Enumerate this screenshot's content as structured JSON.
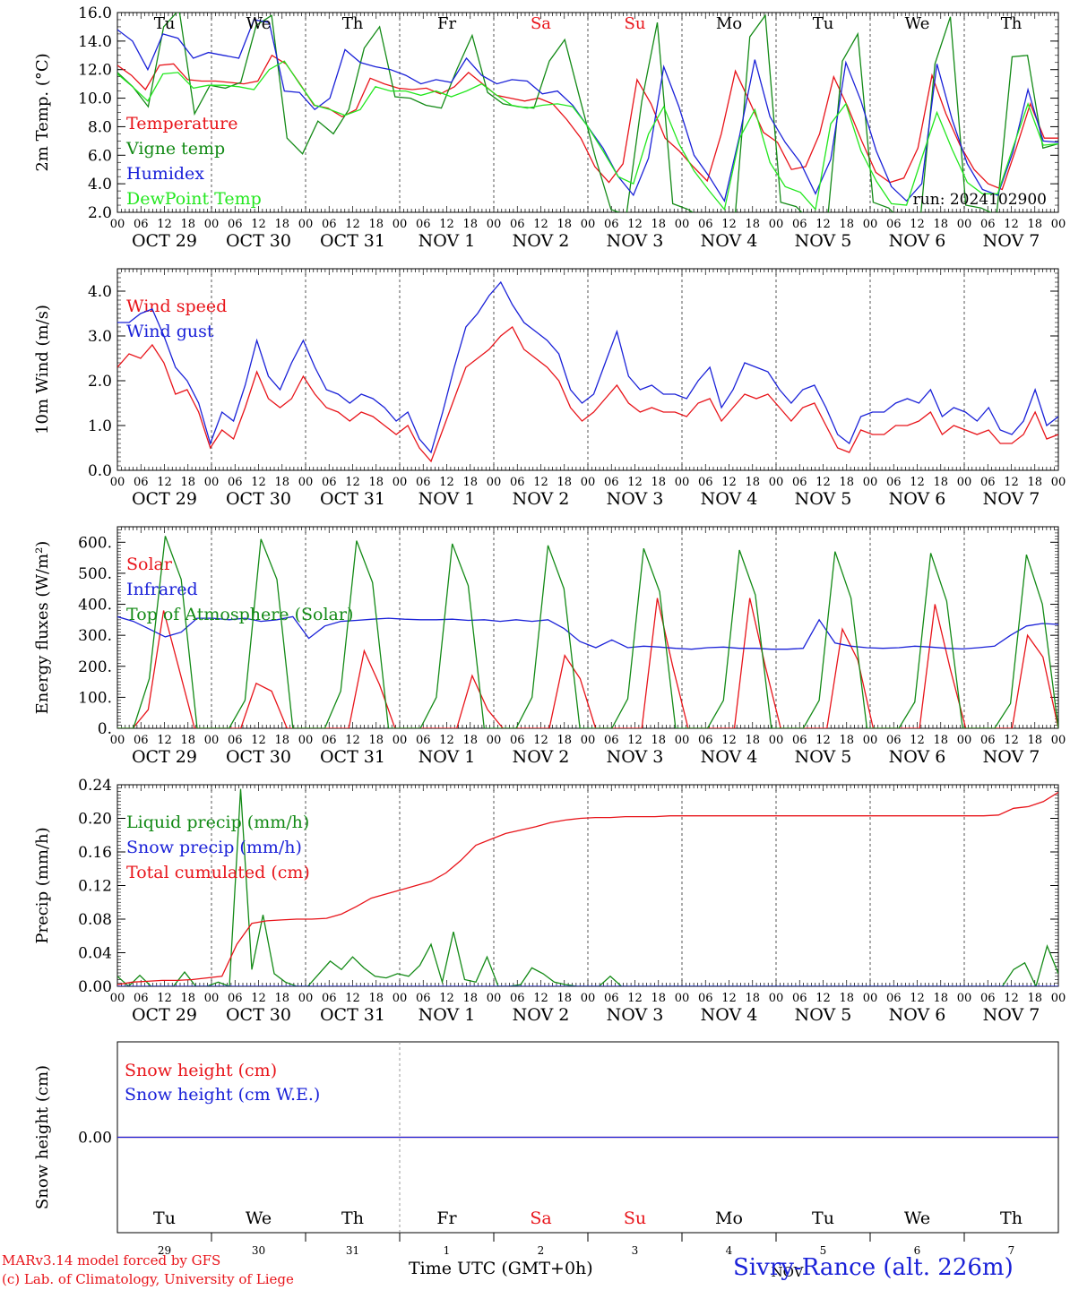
{
  "x_axis": {
    "day_labels": [
      "OCT 29",
      "OCT 30",
      "OCT 31",
      "NOV  1",
      "NOV  2",
      "NOV  3",
      "NOV  4",
      "NOV  5",
      "NOV  6",
      "NOV  7"
    ],
    "hour_labels": [
      "00",
      "06",
      "12",
      "18"
    ],
    "end_hour_label": "00",
    "weekdays": [
      "Tu",
      "We",
      "Th",
      "Fr",
      "Sa",
      "Su",
      "Mo",
      "Tu",
      "We",
      "Th"
    ],
    "weekend_color": "#e8141a",
    "weekday_color": "#000000",
    "bottom_day_numbers": [
      "29",
      "30",
      "31",
      "1",
      "2",
      "3",
      "4",
      "5",
      "6",
      "7"
    ],
    "bottom_month_label": "NOV",
    "title": "Time UTC (GMT+0h)"
  },
  "footer": {
    "model_line": "MARv3.14 model forced by GFS",
    "lab_line": "(c) Lab. of Climatology, University of Liege",
    "station": "Sivry-Rance (alt. 226m)"
  },
  "chart_data": [
    {
      "type": "line",
      "ylabel": "2m Temp. (°C)",
      "ylim": [
        2.0,
        16.0
      ],
      "yticks": [
        "2.0",
        "4.0",
        "6.0",
        "8.0",
        "10.0",
        "12.0",
        "14.0",
        "16.0"
      ],
      "annotation": "run: 2024102900",
      "x": "3-hourly steps from 2024-10-29 00 UTC to 2024-11-08 00 UTC",
      "series": [
        {
          "name": "Temperature",
          "color": "#e8141a",
          "values": [
            12.3,
            11.6,
            10.6,
            12.3,
            12.4,
            11.3,
            11.2,
            11.2,
            11.1,
            11.0,
            11.2,
            13.0,
            12.4,
            11.0,
            9.5,
            9.3,
            8.7,
            9.2,
            11.4,
            11.0,
            10.7,
            10.6,
            10.7,
            10.3,
            10.8,
            11.8,
            11.0,
            10.2,
            10.0,
            9.8,
            10.0,
            9.6,
            8.5,
            7.2,
            5.2,
            4.1,
            5.4,
            11.3,
            9.6,
            7.2,
            6.3,
            5.2,
            4.2,
            7.5,
            11.9,
            9.8,
            7.6,
            6.9,
            5.0,
            5.2,
            7.5,
            11.5,
            9.4,
            7.0,
            4.8,
            4.1,
            4.4,
            6.5,
            11.6,
            8.9,
            6.7,
            5.0,
            4.0,
            3.6,
            6.5,
            9.6,
            7.2,
            7.2
          ]
        },
        {
          "name": "Vigne temp",
          "color": "#138a16",
          "values": [
            11.8,
            10.8,
            9.4,
            15.0,
            16.2,
            8.9,
            10.9,
            10.7,
            11.1,
            15.1,
            15.8,
            7.2,
            6.1,
            8.4,
            7.5,
            9.2,
            13.5,
            15.0,
            10.1,
            10.0,
            9.5,
            9.3,
            12.0,
            14.4,
            10.4,
            9.6,
            9.4,
            9.3,
            12.6,
            14.1,
            9.9,
            5.8,
            2.2,
            1.8,
            9.8,
            15.3,
            2.6,
            2.2,
            1.5,
            1.2,
            1.1,
            14.3,
            15.8,
            2.7,
            2.4,
            1.3,
            1.0,
            12.6,
            14.5,
            2.7,
            2.3,
            1.2,
            0.9,
            12.4,
            15.7,
            2.5,
            2.3,
            1.8,
            12.9,
            13.0,
            6.5,
            6.8
          ]
        },
        {
          "name": "Humidex",
          "color": "#1a21d8",
          "values": [
            14.8,
            14.0,
            12.0,
            14.5,
            14.2,
            12.8,
            13.2,
            13.0,
            12.8,
            15.5,
            15.3,
            10.5,
            10.4,
            9.2,
            10.0,
            13.4,
            12.5,
            12.2,
            12.0,
            11.6,
            11.0,
            11.3,
            11.1,
            12.8,
            11.6,
            11.0,
            11.3,
            11.2,
            10.3,
            10.5,
            9.5,
            8.0,
            6.5,
            4.5,
            3.2,
            5.8,
            12.2,
            9.4,
            6.0,
            4.5,
            2.8,
            7.4,
            12.7,
            8.7,
            6.9,
            5.5,
            3.3,
            5.7,
            12.5,
            9.8,
            6.3,
            3.8,
            2.8,
            4.0,
            12.4,
            8.5,
            5.4,
            3.6,
            3.2,
            6.2,
            10.6,
            7.0,
            6.9
          ]
        },
        {
          "name": "DewPoint Temp",
          "color": "#23e71f",
          "values": [
            11.7,
            10.8,
            9.8,
            11.7,
            11.8,
            10.7,
            10.9,
            10.9,
            10.8,
            10.6,
            12.0,
            12.6,
            11.0,
            9.5,
            9.2,
            8.8,
            9.2,
            10.8,
            10.5,
            10.5,
            10.2,
            10.5,
            10.1,
            10.5,
            11.0,
            10.2,
            9.5,
            9.3,
            9.5,
            9.6,
            9.4,
            8.0,
            6.3,
            4.5,
            4.0,
            7.5,
            9.4,
            6.8,
            4.9,
            3.5,
            2.2,
            7.2,
            9.2,
            5.5,
            3.8,
            3.4,
            2.2,
            8.2,
            9.6,
            6.3,
            4.2,
            2.6,
            2.5,
            5.8,
            9.0,
            6.4,
            4.1,
            3.3,
            3.3,
            6.5,
            9.6,
            6.7,
            6.8
          ]
        }
      ]
    },
    {
      "type": "line",
      "ylabel": "10m Wind (m/s)",
      "ylim": [
        0.0,
        4.5
      ],
      "yticks": [
        "0.0",
        "1.0",
        "2.0",
        "3.0",
        "4.0"
      ],
      "series": [
        {
          "name": "Wind speed",
          "color": "#e8141a",
          "values": [
            2.3,
            2.6,
            2.5,
            2.8,
            2.4,
            1.7,
            1.8,
            1.3,
            0.5,
            0.9,
            0.7,
            1.4,
            2.2,
            1.6,
            1.4,
            1.6,
            2.1,
            1.7,
            1.4,
            1.3,
            1.1,
            1.3,
            1.2,
            1.0,
            0.8,
            1.0,
            0.5,
            0.2,
            0.9,
            1.6,
            2.3,
            2.5,
            2.7,
            3.0,
            3.2,
            2.7,
            2.5,
            2.3,
            2.0,
            1.4,
            1.1,
            1.3,
            1.6,
            1.9,
            1.5,
            1.3,
            1.4,
            1.3,
            1.3,
            1.2,
            1.5,
            1.6,
            1.1,
            1.4,
            1.7,
            1.6,
            1.7,
            1.4,
            1.1,
            1.4,
            1.5,
            1.0,
            0.5,
            0.4,
            0.9,
            0.8,
            0.8,
            1.0,
            1.0,
            1.1,
            1.3,
            0.8,
            1.0,
            0.9,
            0.8,
            0.9,
            0.6,
            0.6,
            0.8,
            1.3,
            0.7,
            0.8
          ]
        },
        {
          "name": "Wind gust",
          "color": "#1a21d8",
          "values": [
            3.3,
            3.3,
            3.5,
            3.6,
            3.0,
            2.3,
            2.0,
            1.5,
            0.6,
            1.3,
            1.1,
            1.9,
            2.9,
            2.1,
            1.8,
            2.4,
            2.9,
            2.3,
            1.8,
            1.7,
            1.5,
            1.7,
            1.6,
            1.4,
            1.1,
            1.3,
            0.7,
            0.4,
            1.3,
            2.3,
            3.2,
            3.5,
            3.9,
            4.2,
            3.7,
            3.3,
            3.1,
            2.9,
            2.6,
            1.8,
            1.5,
            1.7,
            2.4,
            3.1,
            2.1,
            1.8,
            1.9,
            1.7,
            1.7,
            1.6,
            2.0,
            2.3,
            1.4,
            1.8,
            2.4,
            2.3,
            2.2,
            1.8,
            1.5,
            1.8,
            1.9,
            1.4,
            0.8,
            0.6,
            1.2,
            1.3,
            1.3,
            1.5,
            1.6,
            1.5,
            1.8,
            1.2,
            1.4,
            1.3,
            1.1,
            1.4,
            0.9,
            0.8,
            1.1,
            1.8,
            1.0,
            1.2
          ]
        }
      ]
    },
    {
      "type": "line",
      "ylabel": "Energy fluxes (W/m²)",
      "ylim": [
        0,
        650
      ],
      "yticks": [
        "0.",
        "100.",
        "200.",
        "300.",
        "400.",
        "500.",
        "600."
      ],
      "series": [
        {
          "name": "Solar",
          "color": "#e8141a",
          "values": [
            0,
            0,
            60,
            380,
            190,
            0,
            0,
            0,
            0,
            145,
            120,
            0,
            0,
            0,
            0,
            0,
            250,
            140,
            0,
            0,
            0,
            0,
            0,
            170,
            60,
            0,
            0,
            0,
            0,
            235,
            160,
            0,
            0,
            0,
            0,
            420,
            200,
            0,
            0,
            0,
            0,
            420,
            200,
            0,
            0,
            0,
            0,
            320,
            220,
            0,
            0,
            0,
            0,
            400,
            190,
            0,
            0,
            0,
            0,
            300,
            230,
            0
          ]
        },
        {
          "name": "Infrared",
          "color": "#1a21d8",
          "values": [
            360,
            345,
            320,
            295,
            310,
            355,
            355,
            350,
            355,
            345,
            350,
            360,
            290,
            330,
            345,
            348,
            352,
            355,
            352,
            350,
            350,
            352,
            348,
            350,
            345,
            350,
            345,
            350,
            322,
            280,
            260,
            285,
            260,
            265,
            262,
            258,
            255,
            260,
            262,
            258,
            258,
            255,
            255,
            258,
            350,
            275,
            265,
            260,
            258,
            260,
            265,
            262,
            258,
            256,
            260,
            265,
            300,
            330,
            338,
            335
          ]
        },
        {
          "name": "Top of Atmosphere (Solar)",
          "color": "#138a16",
          "values": [
            0,
            0,
            160,
            620,
            480,
            0,
            0,
            0,
            90,
            610,
            480,
            0,
            0,
            0,
            120,
            605,
            470,
            0,
            0,
            0,
            100,
            595,
            460,
            0,
            0,
            0,
            100,
            590,
            450,
            0,
            0,
            0,
            95,
            580,
            440,
            0,
            0,
            0,
            90,
            575,
            430,
            0,
            0,
            0,
            90,
            570,
            420,
            0,
            0,
            0,
            85,
            565,
            410,
            0,
            0,
            0,
            80,
            560,
            400,
            0
          ]
        }
      ]
    },
    {
      "type": "line",
      "ylabel": "Precip (mm/h)",
      "ylim": [
        0.0,
        0.24
      ],
      "yticks": [
        "0.00",
        "0.04",
        "0.08",
        "0.12",
        "0.16",
        "0.20",
        "0.24"
      ],
      "series": [
        {
          "name": "Liquid precip (mm/h)",
          "color": "#138a16",
          "values": [
            0.012,
            0.0,
            0.013,
            0.0,
            0.0,
            0.0,
            0.017,
            0.0,
            0.0,
            0.005,
            0.0,
            0.235,
            0.02,
            0.085,
            0.015,
            0.005,
            0.0,
            0.0,
            0.015,
            0.03,
            0.02,
            0.035,
            0.022,
            0.012,
            0.01,
            0.015,
            0.012,
            0.025,
            0.05,
            0.005,
            0.065,
            0.008,
            0.005,
            0.035,
            0.0,
            0.0,
            0.002,
            0.022,
            0.015,
            0.005,
            0.002,
            0.0,
            0.0,
            0.0,
            0.012,
            0.0,
            0.0,
            0.0,
            0.0,
            0.0,
            0.0,
            0.0,
            0.0,
            0.0,
            0.0,
            0.0,
            0.0,
            0.0,
            0.0,
            0.0,
            0.0,
            0.0,
            0.0,
            0.0,
            0.0,
            0.0,
            0.0,
            0.0,
            0.0,
            0.0,
            0.0,
            0.0,
            0.0,
            0.0,
            0.0,
            0.0,
            0.0,
            0.0,
            0.0,
            0.0,
            0.02,
            0.028,
            0.0,
            0.048,
            0.015
          ]
        },
        {
          "name": "Snow precip (mm/h)",
          "color": "#1a21d8",
          "values": [
            0,
            0,
            0,
            0,
            0,
            0,
            0,
            0,
            0,
            0,
            0,
            0,
            0,
            0,
            0,
            0,
            0,
            0,
            0,
            0,
            0,
            0,
            0,
            0,
            0,
            0,
            0,
            0,
            0,
            0,
            0,
            0,
            0,
            0,
            0,
            0,
            0,
            0,
            0,
            0,
            0,
            0,
            0,
            0,
            0,
            0,
            0,
            0,
            0,
            0,
            0,
            0,
            0,
            0,
            0,
            0,
            0,
            0,
            0,
            0,
            0,
            0,
            0,
            0,
            0,
            0,
            0,
            0,
            0,
            0,
            0,
            0,
            0,
            0,
            0,
            0,
            0,
            0,
            0,
            0,
            0
          ]
        },
        {
          "name": "Total cumulated (cm)",
          "color": "#e8141a",
          "values": [
            0.002,
            0.005,
            0.006,
            0.007,
            0.007,
            0.008,
            0.01,
            0.012,
            0.05,
            0.075,
            0.078,
            0.079,
            0.08,
            0.08,
            0.081,
            0.086,
            0.095,
            0.105,
            0.11,
            0.115,
            0.12,
            0.125,
            0.135,
            0.15,
            0.168,
            0.175,
            0.182,
            0.186,
            0.19,
            0.195,
            0.198,
            0.2,
            0.201,
            0.201,
            0.202,
            0.202,
            0.202,
            0.203,
            0.203,
            0.203,
            0.203,
            0.203,
            0.203,
            0.203,
            0.203,
            0.203,
            0.203,
            0.203,
            0.203,
            0.203,
            0.203,
            0.203,
            0.203,
            0.203,
            0.203,
            0.203,
            0.203,
            0.203,
            0.203,
            0.204,
            0.212,
            0.214,
            0.22,
            0.231
          ]
        }
      ]
    },
    {
      "type": "line",
      "ylabel": "Snow height (cm)",
      "yticks": [
        "0.00"
      ],
      "series": [
        {
          "name": "Snow height (cm)",
          "color": "#e8141a",
          "values": [
            0,
            0
          ]
        },
        {
          "name": "Snow height (cm W.E.)",
          "color": "#1a21d8",
          "values": [
            0,
            0
          ]
        }
      ]
    }
  ]
}
